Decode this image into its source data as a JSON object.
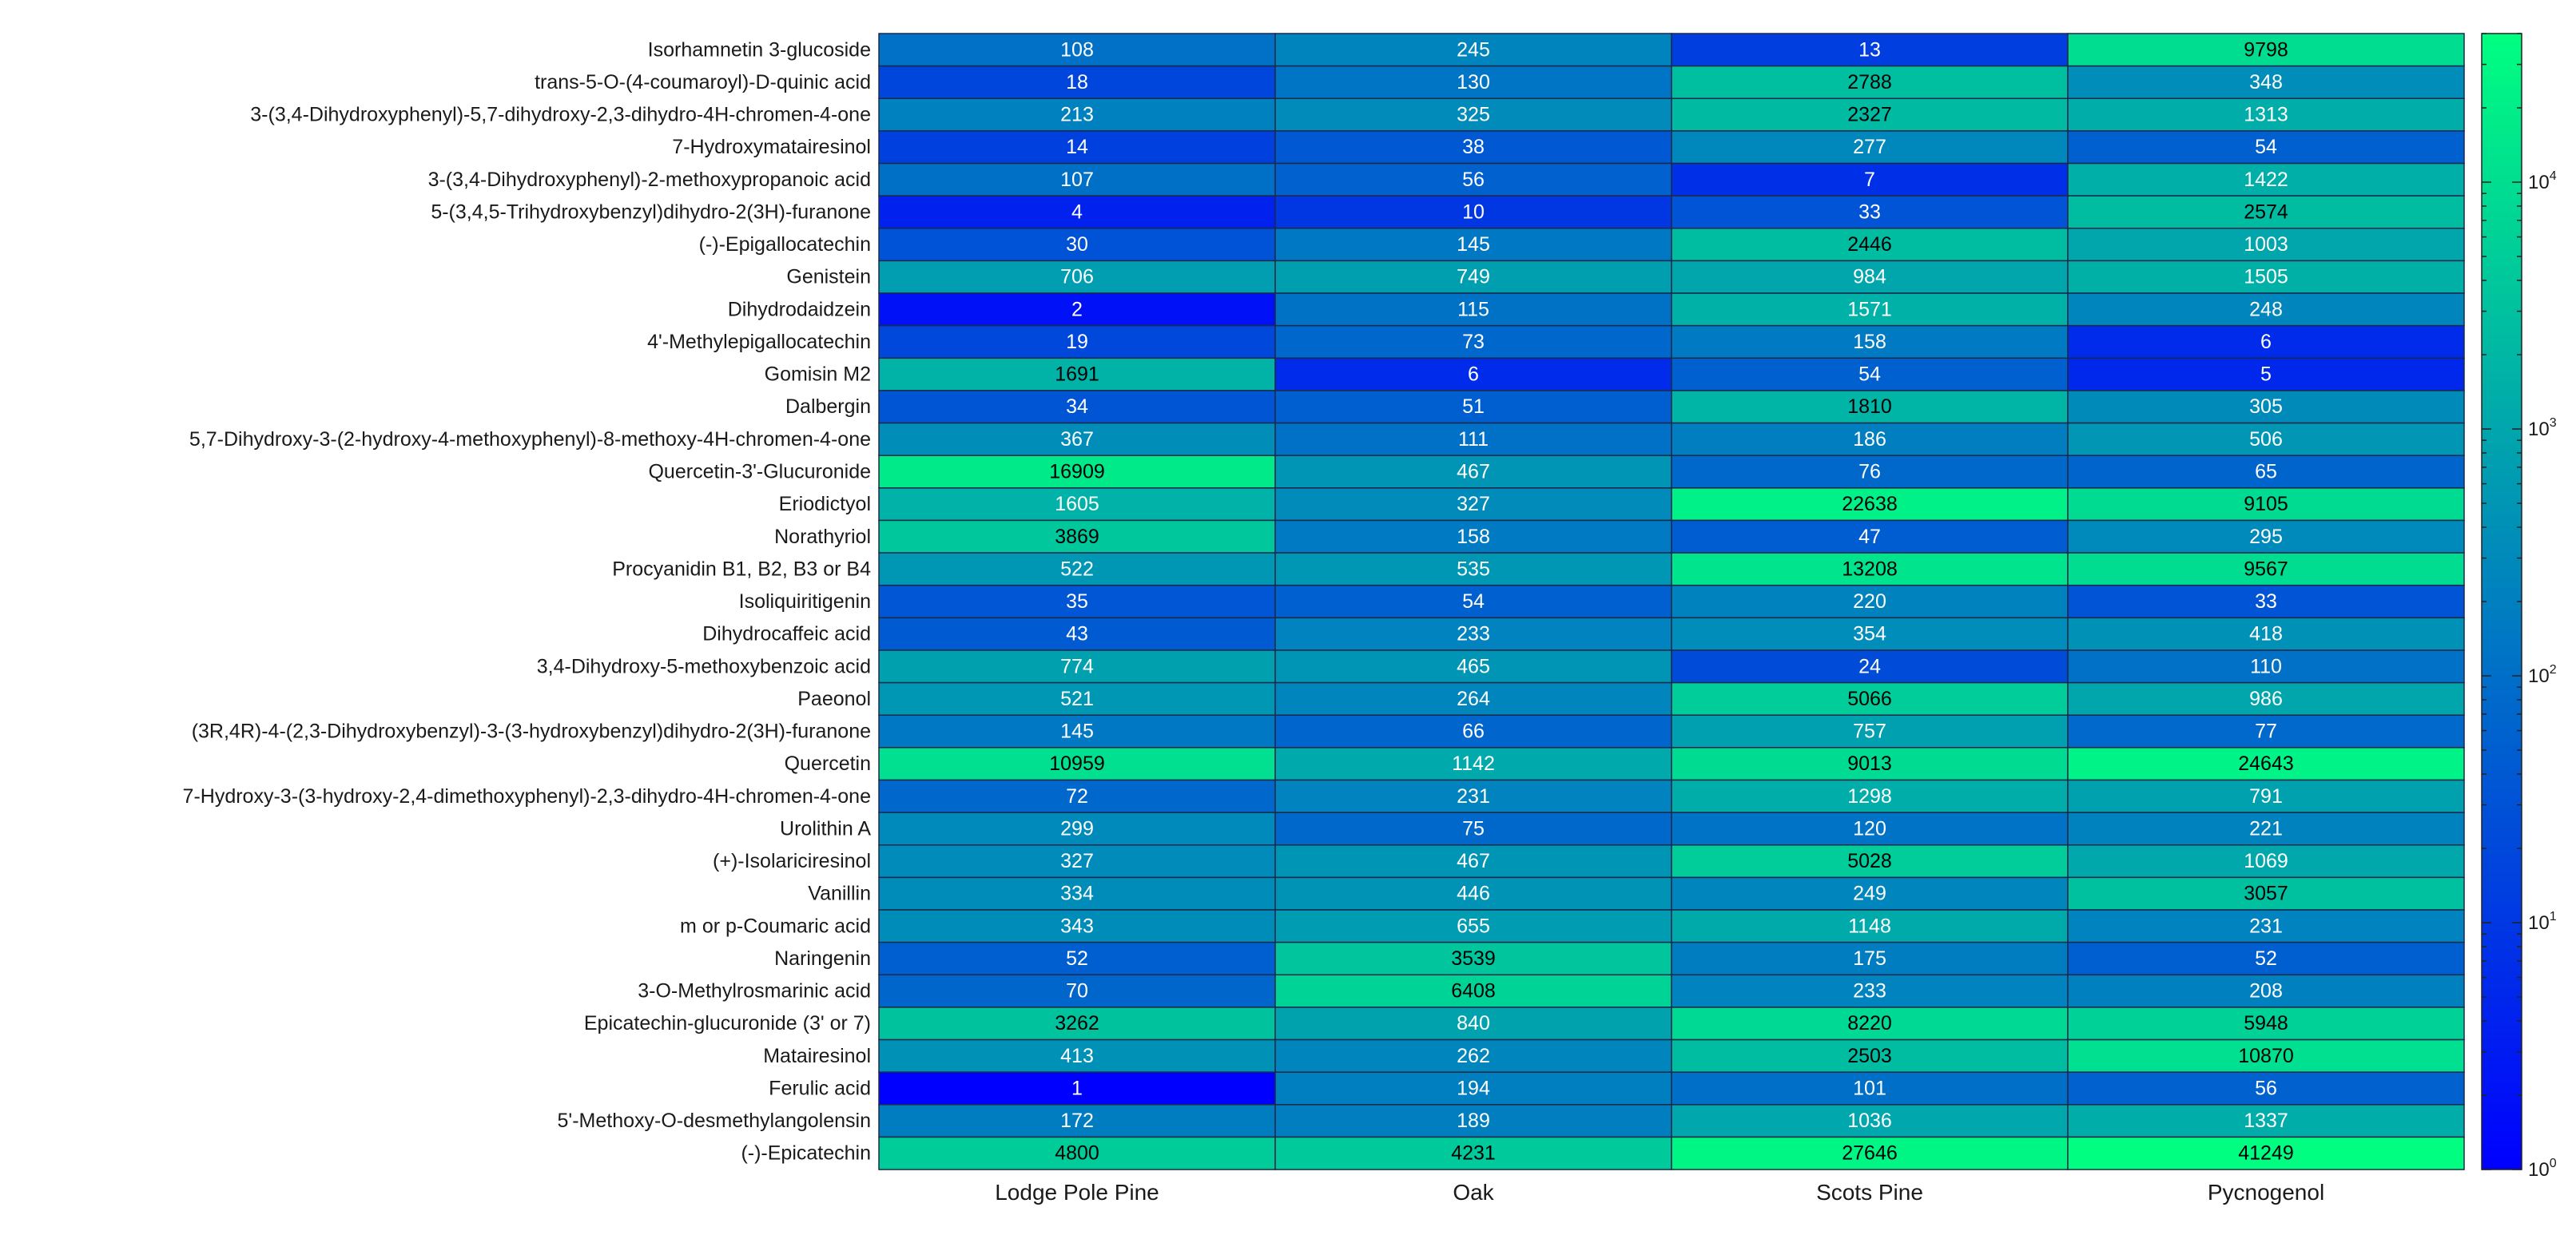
{
  "chart_data": {
    "type": "heatmap",
    "title": "",
    "xlabel": "",
    "ylabel": "",
    "color_scale": "log",
    "colorbar_range": [
      1,
      40000
    ],
    "colormap": [
      "#0000ff",
      "#00ff80"
    ],
    "colorbar_ticks": [
      {
        "value": 1,
        "base": "10",
        "exp": "0"
      },
      {
        "value": 10,
        "base": "10",
        "exp": "1"
      },
      {
        "value": 100,
        "base": "10",
        "exp": "2"
      },
      {
        "value": 1000,
        "base": "10",
        "exp": "3"
      },
      {
        "value": 10000,
        "base": "10",
        "exp": "4"
      }
    ],
    "columns": [
      "Lodge Pole Pine",
      "Oak",
      "Scots Pine",
      "Pycnogenol"
    ],
    "rows": [
      "Isorhamnetin 3-glucoside",
      "trans-5-O-(4-coumaroyl)-D-quinic acid",
      "3-(3,4-Dihydroxyphenyl)-5,7-dihydroxy-2,3-dihydro-4H-chromen-4-one",
      "7-Hydroxymatairesinol",
      "3-(3,4-Dihydroxyphenyl)-2-methoxypropanoic acid",
      "5-(3,4,5-Trihydroxybenzyl)dihydro-2(3H)-furanone",
      "(-)-Epigallocatechin",
      "Genistein",
      "Dihydrodaidzein",
      "4'-Methylepigallocatechin",
      "Gomisin M2",
      "Dalbergin",
      "5,7-Dihydroxy-3-(2-hydroxy-4-methoxyphenyl)-8-methoxy-4H-chromen-4-one",
      "Quercetin-3'-Glucuronide",
      "Eriodictyol",
      "Norathyriol",
      "Procyanidin B1, B2, B3 or B4",
      "Isoliquiritigenin",
      "Dihydrocaffeic acid",
      "3,4-Dihydroxy-5-methoxybenzoic acid",
      "Paeonol",
      "(3R,4R)-4-(2,3-Dihydroxybenzyl)-3-(3-hydroxybenzyl)dihydro-2(3H)-furanone",
      "Quercetin",
      "7-Hydroxy-3-(3-hydroxy-2,4-dimethoxyphenyl)-2,3-dihydro-4H-chromen-4-one",
      "Urolithin A",
      "(+)-Isolariciresinol",
      "Vanillin",
      "m or p-Coumaric acid",
      "Naringenin",
      "3-O-Methylrosmarinic acid",
      "Epicatechin-glucuronide (3' or 7)",
      "Matairesinol",
      "Ferulic acid",
      "5'-Methoxy-O-desmethylangolensin",
      "(-)-Epicatechin"
    ],
    "values": [
      [
        108,
        245,
        13,
        9798
      ],
      [
        18,
        130,
        2788,
        348
      ],
      [
        213,
        325,
        2327,
        1313
      ],
      [
        14,
        38,
        277,
        54
      ],
      [
        107,
        56,
        7,
        1422
      ],
      [
        4,
        10,
        33,
        2574
      ],
      [
        30,
        145,
        2446,
        1003
      ],
      [
        706,
        749,
        984,
        1505
      ],
      [
        2,
        115,
        1571,
        248
      ],
      [
        19,
        73,
        158,
        6
      ],
      [
        1691,
        6,
        54,
        5
      ],
      [
        34,
        51,
        1810,
        305
      ],
      [
        367,
        111,
        186,
        506
      ],
      [
        16909,
        467,
        76,
        65
      ],
      [
        1605,
        327,
        22638,
        9105
      ],
      [
        3869,
        158,
        47,
        295
      ],
      [
        522,
        535,
        13208,
        9567
      ],
      [
        35,
        54,
        220,
        33
      ],
      [
        43,
        233,
        354,
        418
      ],
      [
        774,
        465,
        24,
        110
      ],
      [
        521,
        264,
        5066,
        986
      ],
      [
        145,
        66,
        757,
        77
      ],
      [
        10959,
        1142,
        9013,
        24643
      ],
      [
        72,
        231,
        1298,
        791
      ],
      [
        299,
        75,
        120,
        221
      ],
      [
        327,
        467,
        5028,
        1069
      ],
      [
        334,
        446,
        249,
        3057
      ],
      [
        343,
        655,
        1148,
        231
      ],
      [
        52,
        3539,
        175,
        52
      ],
      [
        70,
        6408,
        233,
        208
      ],
      [
        3262,
        840,
        8220,
        5948
      ],
      [
        413,
        262,
        2503,
        10870
      ],
      [
        1,
        194,
        101,
        56
      ],
      [
        172,
        189,
        1036,
        1337
      ],
      [
        4800,
        4231,
        27646,
        41249
      ]
    ]
  }
}
